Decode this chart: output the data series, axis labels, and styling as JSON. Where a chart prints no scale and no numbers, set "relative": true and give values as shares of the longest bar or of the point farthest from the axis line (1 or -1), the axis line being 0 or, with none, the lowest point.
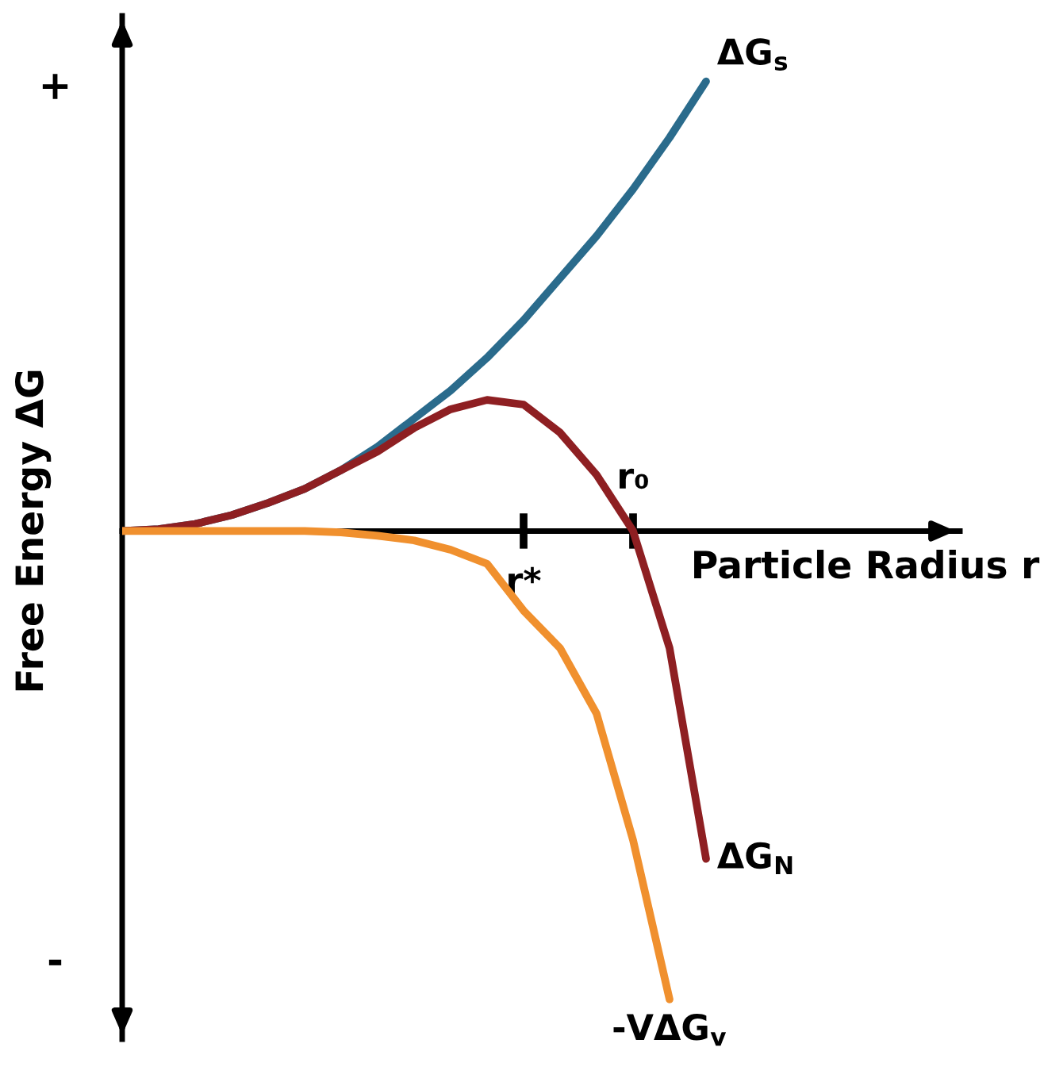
{
  "chart_data": {
    "type": "line",
    "relative": true,
    "xlabel": "Particle Radius r",
    "ylabel": "Free Energy ΔG",
    "categories": [
      null,
      null,
      null,
      null,
      null,
      null,
      null,
      null,
      null,
      null,
      null,
      "r*",
      null,
      null,
      "r₀",
      null,
      null
    ],
    "series": [
      {
        "name": "ΔG$_{s}$",
        "color": "#2a6b8c",
        "values": [
          0,
          0.004,
          0.015,
          0.034,
          0.06,
          0.09,
          0.13,
          0.18,
          0.24,
          0.3,
          0.37,
          0.45,
          0.54,
          0.63,
          0.73,
          0.84,
          0.96
        ]
      },
      {
        "name": "ΔG$_{N}$",
        "color": "#8e1f22",
        "values": [
          0,
          0.004,
          0.015,
          0.034,
          0.06,
          0.09,
          0.13,
          0.17,
          0.22,
          0.26,
          0.28,
          0.27,
          0.21,
          0.12,
          0,
          -0.25,
          -0.7
        ]
      },
      {
        "name": "-VΔG$_{v}$",
        "color": "#f0902e",
        "values": [
          0,
          0,
          0,
          0,
          0,
          0,
          -0.003,
          -0.01,
          -0.02,
          -0.04,
          -0.07,
          -0.17,
          -0.25,
          -0.39,
          -0.66,
          -1,
          null
        ]
      }
    ],
    "annotations": [
      "+",
      "-"
    ]
  }
}
